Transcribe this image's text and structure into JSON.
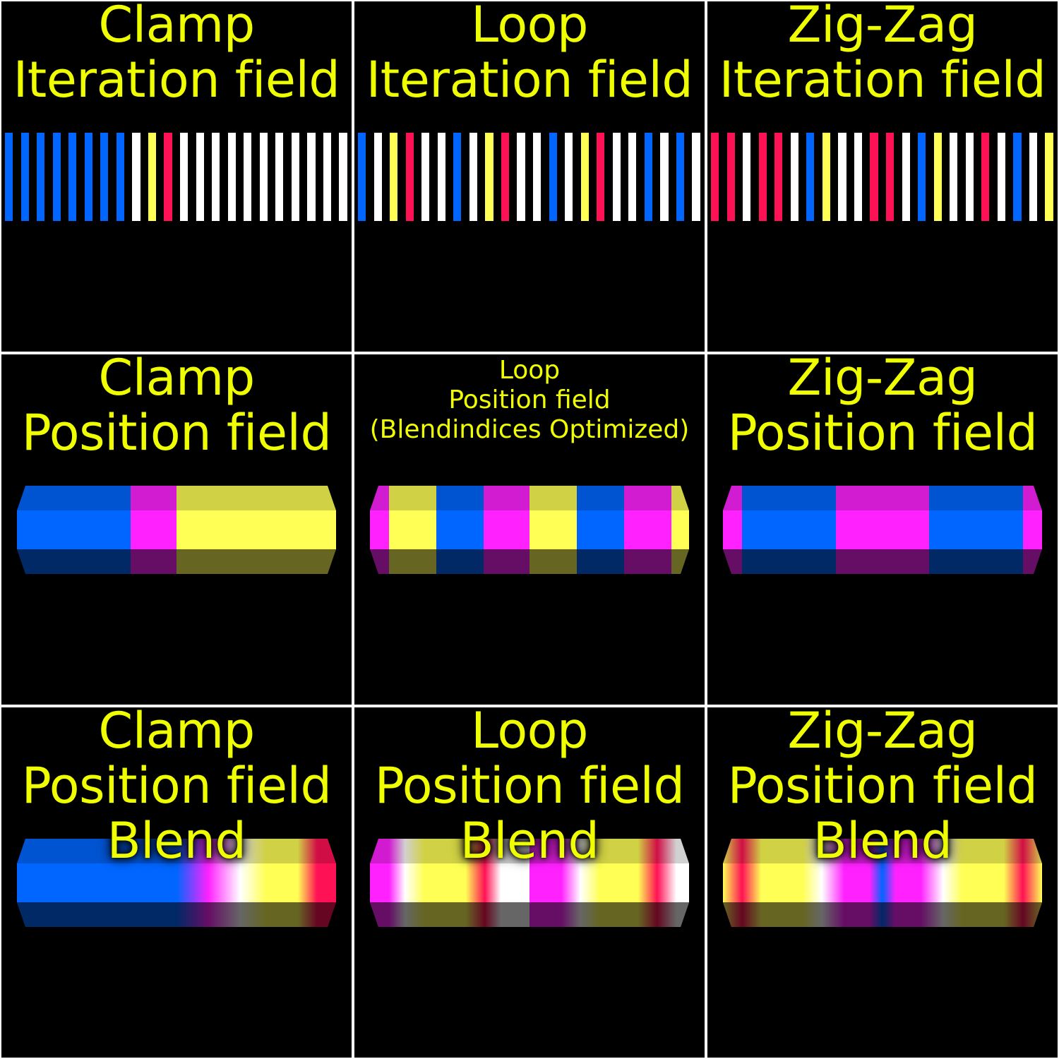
{
  "colors": {
    "title": "#f0ff00",
    "background": "#000000",
    "grid_line": "#ffffff",
    "blue": "#0066ff",
    "magenta": "#ff22ff",
    "yellow": "#ffff55",
    "red": "#ff1155",
    "white": "#ffffff"
  },
  "panels": [
    {
      "id": "clamp-iteration",
      "title_lines": [
        "Clamp",
        "Iteration field"
      ],
      "style": "big",
      "kind": "strip",
      "bars": [
        "blue",
        "blue",
        "blue",
        "blue",
        "blue",
        "blue",
        "blue",
        "blue",
        "white",
        "yellow",
        "red",
        "white",
        "white",
        "white",
        "white",
        "white",
        "white",
        "white",
        "white",
        "white",
        "white",
        "white"
      ]
    },
    {
      "id": "loop-iteration",
      "title_lines": [
        "Loop",
        "Iteration field"
      ],
      "style": "big",
      "kind": "strip",
      "bars": [
        "blue",
        "white",
        "yellow",
        "red",
        "white",
        "white",
        "blue",
        "white",
        "yellow",
        "red",
        "white",
        "white",
        "blue",
        "white",
        "yellow",
        "red",
        "white",
        "white",
        "blue",
        "white",
        "blue",
        "white"
      ]
    },
    {
      "id": "zigzag-iteration",
      "title_lines": [
        "Zig-Zag",
        "Iteration field"
      ],
      "style": "big",
      "kind": "strip",
      "bars": [
        "red",
        "red",
        "white",
        "red",
        "red",
        "white",
        "blue",
        "yellow",
        "white",
        "white",
        "red",
        "red",
        "white",
        "blue",
        "yellow",
        "white",
        "white",
        "red",
        "white",
        "blue",
        "white",
        "yellow"
      ]
    },
    {
      "id": "clamp-position",
      "title_lines": [
        "Clamp",
        "Position field"
      ],
      "style": "big",
      "kind": "capsule",
      "segments": [
        [
          "blue",
          0.357
        ],
        [
          "magenta",
          0.143
        ],
        [
          "yellow",
          0.5
        ]
      ]
    },
    {
      "id": "loop-position",
      "title_lines": [
        "Loop",
        "Position field",
        "(Blendindices Optimized)"
      ],
      "style": "small",
      "kind": "capsule",
      "segments": [
        [
          "magenta",
          0.06
        ],
        [
          "yellow",
          0.148
        ],
        [
          "blue",
          0.148
        ],
        [
          "magenta",
          0.144
        ],
        [
          "yellow",
          0.148
        ],
        [
          "blue",
          0.148
        ],
        [
          "magenta",
          0.148
        ],
        [
          "yellow",
          0.056
        ]
      ]
    },
    {
      "id": "zigzag-position",
      "title_lines": [
        "Zig-Zag",
        "Position field"
      ],
      "style": "big",
      "kind": "capsule",
      "segments": [
        [
          "magenta",
          0.06
        ],
        [
          "blue",
          0.294
        ],
        [
          "magenta",
          0.292
        ],
        [
          "blue",
          0.294
        ],
        [
          "magenta",
          0.06
        ]
      ]
    },
    {
      "id": "clamp-blend",
      "title_lines": [
        "Clamp",
        "Position field",
        "Blend"
      ],
      "style": "big",
      "kind": "blend",
      "stops": [
        [
          "blue",
          0
        ],
        [
          "blue",
          0.5
        ],
        [
          "magenta",
          0.6
        ],
        [
          "white",
          0.7
        ],
        [
          "yellow",
          0.78
        ],
        [
          "yellow",
          0.88
        ],
        [
          "red",
          0.94
        ],
        [
          "red",
          1
        ]
      ]
    },
    {
      "id": "loop-blend",
      "title_lines": [
        "Loop",
        "Position field",
        "Blend"
      ],
      "style": "big",
      "kind": "blend",
      "stops": [
        [
          "magenta",
          0
        ],
        [
          "magenta",
          0.06
        ],
        [
          "white",
          0.11
        ],
        [
          "yellow",
          0.17
        ],
        [
          "yellow",
          0.3
        ],
        [
          "red",
          0.36
        ],
        [
          "white",
          0.41
        ],
        [
          "white",
          0.5
        ],
        [
          "magenta",
          0.5
        ],
        [
          "magenta",
          0.6
        ],
        [
          "white",
          0.66
        ],
        [
          "yellow",
          0.72
        ],
        [
          "yellow",
          0.84
        ],
        [
          "red",
          0.9
        ],
        [
          "white",
          0.96
        ],
        [
          "white",
          1
        ]
      ]
    },
    {
      "id": "zigzag-blend",
      "title_lines": [
        "Zig-Zag",
        "Position field",
        "Blend"
      ],
      "style": "big",
      "kind": "blend",
      "stops": [
        [
          "yellow",
          0
        ],
        [
          "red",
          0.06
        ],
        [
          "yellow",
          0.12
        ],
        [
          "yellow",
          0.25
        ],
        [
          "white",
          0.31
        ],
        [
          "magenta",
          0.38
        ],
        [
          "magenta",
          0.46
        ],
        [
          "blue",
          0.5
        ],
        [
          "magenta",
          0.54
        ],
        [
          "magenta",
          0.62
        ],
        [
          "white",
          0.69
        ],
        [
          "yellow",
          0.75
        ],
        [
          "yellow",
          0.88
        ],
        [
          "red",
          0.94
        ],
        [
          "yellow",
          1
        ]
      ]
    }
  ]
}
